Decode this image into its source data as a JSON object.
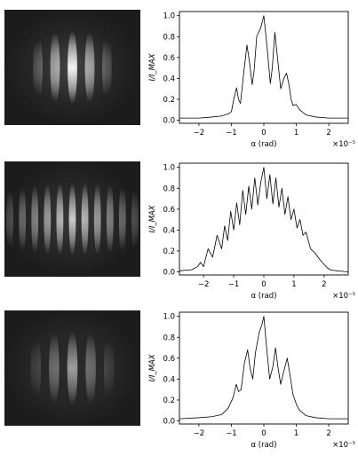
{
  "panels": [
    {
      "fringes": {
        "count": 5,
        "envelope_sigma": 0.17,
        "peak_brightness": 0.96
      },
      "chart_data": {
        "type": "line",
        "xlabel": "α (rad)",
        "ylabel": "I/I_MAX",
        "xscale_label": "×10⁻⁵",
        "xlim": [
          -2.6,
          2.6
        ],
        "ylim": [
          -0.03,
          1.04
        ],
        "xticks": [
          -2,
          -1,
          0,
          1,
          2
        ],
        "yticks": [
          "0.0",
          "0.2",
          "0.4",
          "0.6",
          "0.8",
          "1.0"
        ],
        "x": [
          -2.6,
          -2.0,
          -1.6,
          -1.3,
          -1.1,
          -1.0,
          -0.92,
          -0.84,
          -0.78,
          -0.72,
          -0.62,
          -0.52,
          -0.44,
          -0.36,
          -0.3,
          -0.22,
          -0.1,
          0.0,
          0.1,
          0.2,
          0.26,
          0.34,
          0.42,
          0.52,
          0.62,
          0.7,
          0.78,
          0.84,
          0.9,
          1.0,
          1.1,
          1.3,
          1.6,
          2.0,
          2.6
        ],
        "y": [
          0.02,
          0.02,
          0.03,
          0.04,
          0.06,
          0.08,
          0.21,
          0.31,
          0.2,
          0.16,
          0.45,
          0.72,
          0.55,
          0.34,
          0.47,
          0.8,
          0.88,
          1.0,
          0.7,
          0.35,
          0.5,
          0.84,
          0.6,
          0.3,
          0.4,
          0.45,
          0.33,
          0.2,
          0.14,
          0.15,
          0.1,
          0.05,
          0.03,
          0.02,
          0.02
        ]
      }
    },
    {
      "fringes": {
        "count": 13,
        "envelope_sigma": 0.32,
        "peak_brightness": 0.8
      },
      "chart_data": {
        "type": "line",
        "xlabel": "α (rad)",
        "ylabel": "I/I_MAX",
        "xscale_label": "×10⁻⁵",
        "xlim": [
          -2.8,
          2.8
        ],
        "ylim": [
          -0.03,
          1.04
        ],
        "xticks": [
          -2,
          -1,
          0,
          1,
          2
        ],
        "yticks": [
          "0.0",
          "0.2",
          "0.4",
          "0.6",
          "0.8",
          "1.0"
        ],
        "x": [
          -2.8,
          -2.4,
          -2.2,
          -2.1,
          -2.0,
          -1.85,
          -1.7,
          -1.55,
          -1.4,
          -1.3,
          -1.2,
          -1.1,
          -1.0,
          -0.9,
          -0.8,
          -0.7,
          -0.6,
          -0.5,
          -0.4,
          -0.3,
          -0.2,
          -0.1,
          0.0,
          0.1,
          0.2,
          0.3,
          0.4,
          0.5,
          0.6,
          0.7,
          0.8,
          0.9,
          1.0,
          1.1,
          1.2,
          1.3,
          1.4,
          1.55,
          1.7,
          1.85,
          2.0,
          2.1,
          2.2,
          2.4,
          2.8
        ],
        "y": [
          0.01,
          0.02,
          0.05,
          0.09,
          0.05,
          0.22,
          0.14,
          0.35,
          0.22,
          0.44,
          0.3,
          0.58,
          0.4,
          0.66,
          0.45,
          0.78,
          0.55,
          0.82,
          0.6,
          0.9,
          0.64,
          0.86,
          1.0,
          0.7,
          0.93,
          0.65,
          0.9,
          0.62,
          0.8,
          0.55,
          0.72,
          0.5,
          0.6,
          0.42,
          0.5,
          0.35,
          0.38,
          0.22,
          0.18,
          0.12,
          0.07,
          0.04,
          0.02,
          0.01,
          0.0
        ]
      }
    },
    {
      "fringes": {
        "count": 5,
        "envelope_sigma": 0.18,
        "peak_brightness": 0.62
      },
      "chart_data": {
        "type": "line",
        "xlabel": "α (rad)",
        "ylabel": "I/I_MAX",
        "xscale_label": "×10⁻⁵",
        "xlim": [
          -2.6,
          2.6
        ],
        "ylim": [
          -0.03,
          1.04
        ],
        "xticks": [
          -2,
          -1,
          0,
          1,
          2
        ],
        "yticks": [
          "0.0",
          "0.2",
          "0.4",
          "0.6",
          "0.8",
          "1.0"
        ],
        "x": [
          -2.6,
          -2.0,
          -1.6,
          -1.3,
          -1.1,
          -0.95,
          -0.85,
          -0.78,
          -0.7,
          -0.6,
          -0.5,
          -0.42,
          -0.34,
          -0.26,
          -0.14,
          -0.06,
          0.0,
          0.08,
          0.18,
          0.28,
          0.36,
          0.44,
          0.52,
          0.62,
          0.72,
          0.8,
          0.9,
          1.0,
          1.1,
          1.3,
          1.6,
          2.0,
          2.6
        ],
        "y": [
          0.02,
          0.03,
          0.04,
          0.06,
          0.12,
          0.22,
          0.35,
          0.28,
          0.3,
          0.55,
          0.68,
          0.5,
          0.4,
          0.65,
          0.85,
          0.92,
          1.0,
          0.72,
          0.4,
          0.52,
          0.7,
          0.5,
          0.35,
          0.48,
          0.6,
          0.45,
          0.25,
          0.16,
          0.1,
          0.05,
          0.03,
          0.02,
          0.02
        ]
      }
    }
  ]
}
